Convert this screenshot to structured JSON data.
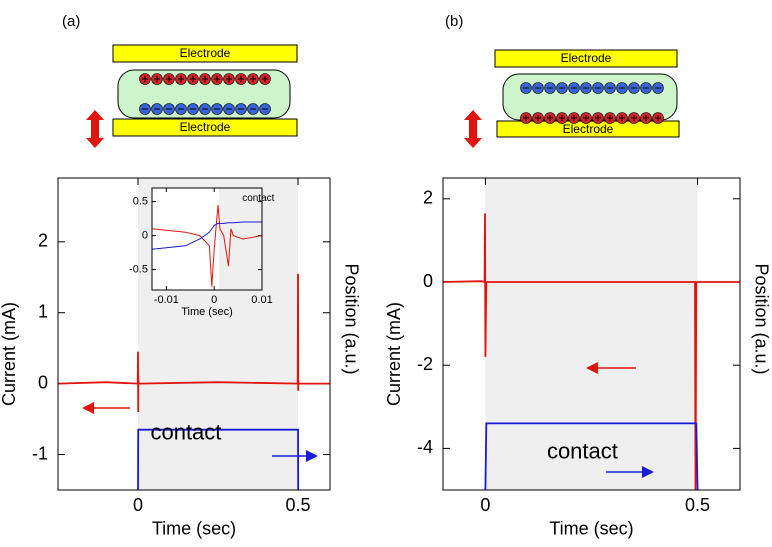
{
  "panels": [
    {
      "label": "(a)",
      "electrodes": [
        "Electrode",
        "Electrode"
      ]
    },
    {
      "label": "(b)",
      "electrodes": [
        "Electrode",
        "Electrode"
      ]
    }
  ],
  "chart_data": [
    {
      "type": "line",
      "x_label": "Time (sec)",
      "y_label": "Current (mA)",
      "y2_label": "Position (a.u.)",
      "annotation": "contact",
      "shade": [
        0,
        0.5
      ],
      "xlim": [
        -0.25,
        0.6
      ],
      "ylim": [
        -1.5,
        2.9
      ],
      "xticks": [
        0,
        0.5
      ],
      "yticks": [
        -1,
        0,
        1,
        2
      ],
      "x": [
        -0.25,
        -0.1,
        -0.001,
        0,
        0.0005,
        0.001,
        0.002,
        0.25,
        0.499,
        0.5,
        0.5005,
        0.501,
        0.502,
        0.6
      ],
      "series": [
        {
          "color": "#e0140c",
          "values": [
            0,
            0.02,
            0,
            0.45,
            -0.4,
            0.1,
            0,
            0.02,
            0,
            1.55,
            -0.1,
            0.05,
            0,
            0
          ]
        },
        {
          "color": "#1a1ad8",
          "values": [
            null,
            null,
            null,
            -1.5,
            -0.7,
            -0.65,
            -0.65,
            -0.65,
            -0.65,
            -0.65,
            -1.5,
            null,
            null,
            null
          ]
        }
      ]
    },
    {
      "type": "line",
      "x_label": "Time (sec)",
      "annotation": "contact",
      "shade": [
        0.001,
        0.01
      ],
      "xlim": [
        -0.013,
        0.01
      ],
      "ylim": [
        -0.8,
        0.7
      ],
      "xticks": [
        -0.01,
        0,
        0.01
      ],
      "yticks": [
        -0.5,
        0,
        0.5
      ],
      "x": [
        -0.013,
        -0.006,
        -0.003,
        -0.001,
        -0.0005,
        0,
        0.0008,
        0.0012,
        0.002,
        0.003,
        0.0035,
        0.004,
        0.006,
        0.01
      ],
      "series": [
        {
          "color": "#e0140c",
          "values": [
            0.1,
            0.05,
            0,
            -0.15,
            -0.75,
            -0.2,
            0.45,
            0.1,
            0,
            -0.45,
            0.1,
            0,
            -0.05,
            0
          ]
        },
        {
          "color": "#1a1ad8",
          "values": [
            -0.2,
            -0.15,
            -0.05,
            0.05,
            0.1,
            0.15,
            0.18,
            0.18,
            0.18,
            0.19,
            0.19,
            0.19,
            0.2,
            0.2
          ]
        }
      ]
    },
    {
      "type": "line",
      "x_label": "Time (sec)",
      "y_label": "Current (mA)",
      "y2_label": "Position (a.u.)",
      "annotation": "contact",
      "shade": [
        0,
        0.5
      ],
      "xlim": [
        -0.1,
        0.6
      ],
      "ylim": [
        -5,
        2.5
      ],
      "xticks": [
        0,
        0.5
      ],
      "yticks": [
        -4,
        -2,
        0,
        2
      ],
      "x": [
        -0.1,
        -0.01,
        -0.002,
        -0.001,
        0,
        0.002,
        0.25,
        0.494,
        0.495,
        0.497,
        0.5,
        0.6
      ],
      "series": [
        {
          "color": "#e0140c",
          "values": [
            0,
            0.02,
            0,
            1.65,
            -1.8,
            0,
            0,
            0,
            -5,
            0,
            0,
            0
          ]
        },
        {
          "color": "#1a1ad8",
          "values": [
            null,
            null,
            null,
            null,
            -5,
            -3.4,
            -3.4,
            -3.4,
            -3.4,
            -3.4,
            -5,
            null
          ]
        }
      ]
    }
  ]
}
